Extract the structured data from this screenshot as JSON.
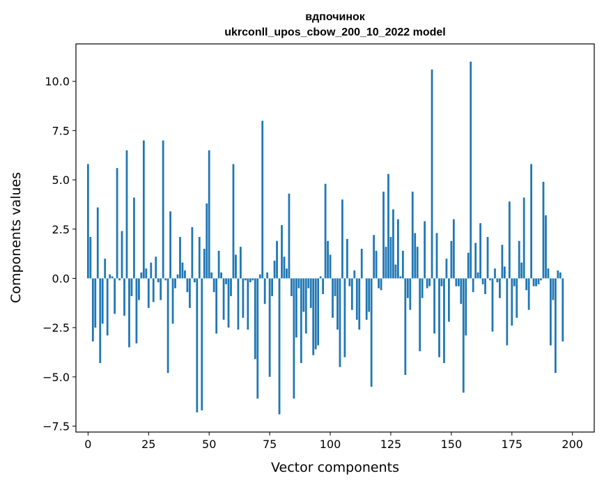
{
  "chart_data": {
    "type": "bar",
    "title": "вдпочинок",
    "subtitle": "ukrconll_upos_cbow_200_10_2022 model",
    "xlabel": "Vector components",
    "ylabel": "Components values",
    "xlim": [
      -5,
      209
    ],
    "ylim": [
      -7.8,
      11.9
    ],
    "xticks": [
      0,
      25,
      50,
      75,
      100,
      125,
      150,
      175,
      200
    ],
    "yticks": [
      -7.5,
      -5.0,
      -2.5,
      0.0,
      2.5,
      5.0,
      7.5,
      10.0
    ],
    "ytick_labels": [
      "−7.5",
      "−5.0",
      "−2.5",
      "0.0",
      "2.5",
      "5.0",
      "7.5",
      "10.0"
    ],
    "bar_color": "#1f77b4",
    "values": [
      5.8,
      2.1,
      -3.2,
      -2.5,
      3.6,
      -4.3,
      -2.3,
      1.0,
      -2.9,
      0.2,
      0.1,
      -1.8,
      5.6,
      -0.1,
      2.4,
      -1.9,
      6.5,
      -3.5,
      -0.9,
      4.1,
      -3.3,
      -1.1,
      0.3,
      7.0,
      0.5,
      -1.5,
      0.8,
      -1.2,
      1.1,
      -0.2,
      -1.1,
      7.0,
      -0.1,
      -4.8,
      3.4,
      -2.3,
      -0.5,
      0.2,
      2.1,
      0.8,
      0.4,
      -0.7,
      -1.5,
      2.6,
      -0.2,
      -6.8,
      2.1,
      -6.7,
      1.5,
      3.8,
      6.5,
      0.3,
      -0.7,
      -2.8,
      1.4,
      0.3,
      -2.1,
      -0.3,
      -2.5,
      -0.9,
      5.8,
      1.2,
      -2.6,
      1.6,
      -2.0,
      -0.1,
      -2.6,
      -0.2,
      -0.1,
      -4.1,
      -6.1,
      0.2,
      8.0,
      -1.3,
      0.3,
      -5.0,
      -0.9,
      0.9,
      1.9,
      -6.9,
      2.7,
      1.1,
      0.5,
      4.3,
      -0.9,
      -6.1,
      -3.0,
      -0.5,
      -4.3,
      -1.7,
      -2.8,
      -0.5,
      -1.5,
      -3.9,
      -3.6,
      -3.4,
      0.1,
      -0.8,
      4.8,
      1.9,
      1.2,
      -2.0,
      -0.9,
      -2.6,
      -4.5,
      4.0,
      -4.0,
      2.0,
      -0.4,
      -1.6,
      0.4,
      -2.1,
      -2.6,
      1.5,
      0.0,
      -2.1,
      -1.7,
      -5.5,
      2.2,
      1.4,
      -0.5,
      -0.6,
      4.4,
      1.6,
      5.3,
      2.1,
      3.5,
      0.7,
      3.0,
      0.1,
      1.4,
      -4.9,
      -1.0,
      -1.6,
      4.4,
      2.3,
      1.6,
      -3.7,
      -1.0,
      2.9,
      -0.5,
      -0.4,
      10.6,
      -2.8,
      2.3,
      -4.0,
      -0.4,
      -4.3,
      1.0,
      -2.2,
      1.9,
      3.0,
      -0.4,
      -0.4,
      -1.3,
      -5.8,
      -2.9,
      1.3,
      11.0,
      -0.7,
      1.8,
      0.3,
      2.8,
      -0.3,
      -0.8,
      2.1,
      -0.1,
      -2.7,
      0.5,
      -0.2,
      -1.0,
      1.7,
      0.6,
      -3.4,
      3.9,
      -2.4,
      -0.4,
      -2.0,
      1.9,
      0.8,
      4.1,
      -0.6,
      -1.6,
      5.8,
      -0.4,
      -0.4,
      -0.3,
      -0.1,
      4.9,
      3.2,
      0.5,
      -3.4,
      -1.1,
      -4.8,
      0.4,
      0.3,
      -3.2
    ]
  }
}
